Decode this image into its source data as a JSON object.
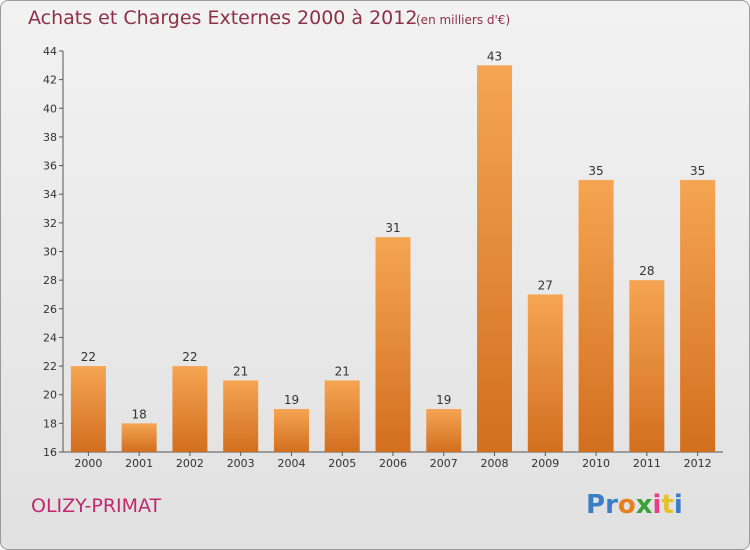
{
  "title": "Achats et Charges Externes 2000 à 2012",
  "subtitle": "(en milliers d'€)",
  "commune": "OLIZY-PRIMAT",
  "logo": {
    "letters": [
      "P",
      "r",
      "o",
      "x",
      "i",
      "t",
      "i"
    ],
    "colors": [
      "#3a7fc4",
      "#3a7fc4",
      "#e67e22",
      "#3aa03a",
      "#e63e8a",
      "#e6c228",
      "#3a7fc4"
    ]
  },
  "colors": {
    "bar_light": "#f5a553",
    "bar_dark": "#d26f1e",
    "title": "#8e2f4a",
    "commune": "#c0276c"
  },
  "chart_data": {
    "type": "bar",
    "categories": [
      "2000",
      "2001",
      "2002",
      "2003",
      "2004",
      "2005",
      "2006",
      "2007",
      "2008",
      "2009",
      "2010",
      "2011",
      "2012"
    ],
    "values": [
      22,
      18,
      22,
      21,
      19,
      21,
      31,
      19,
      43,
      27,
      35,
      28,
      35
    ],
    "ylim": [
      16,
      44
    ],
    "yticks": [
      16,
      18,
      20,
      22,
      24,
      26,
      28,
      30,
      32,
      34,
      36,
      38,
      40,
      42,
      44
    ],
    "grid": false
  }
}
